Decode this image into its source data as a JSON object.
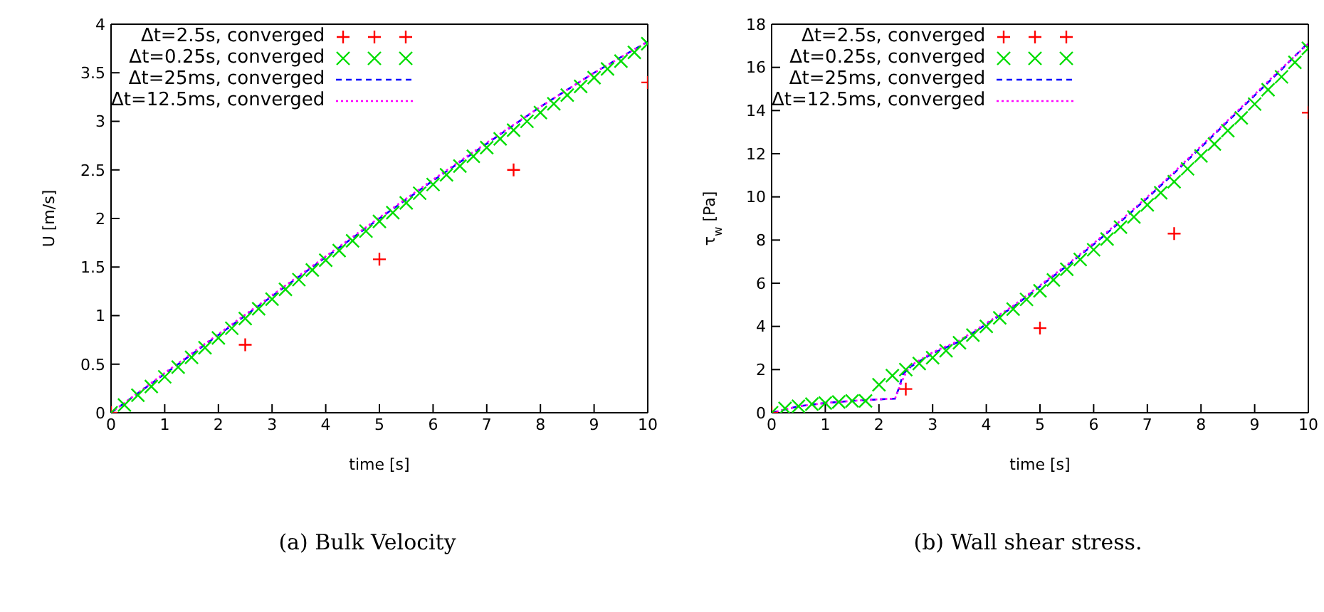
{
  "chart_data": [
    {
      "type": "line",
      "title": "(a) Bulk Velocity",
      "xlabel": "time [s]",
      "ylabel": "U [m/s]",
      "xlim": [
        0,
        10
      ],
      "xticks": [
        0,
        1,
        2,
        3,
        4,
        5,
        6,
        7,
        8,
        9,
        10
      ],
      "ylim": [
        0,
        4
      ],
      "yticks": [
        0,
        0.5,
        1,
        1.5,
        2,
        2.5,
        3,
        3.5,
        4
      ],
      "legend": "top left",
      "series": [
        {
          "name": "Δt=2.5s, converged",
          "type": "scatter",
          "marker": "plus",
          "color": "#ff0000",
          "x": [
            0,
            2.5,
            5,
            7.5,
            10
          ],
          "values": [
            0,
            0.7,
            1.58,
            2.5,
            3.4
          ]
        },
        {
          "name": "Δt=0.25s, converged",
          "type": "scatter",
          "marker": "cross",
          "color": "#00dd00",
          "x": [
            0,
            0.25,
            0.5,
            0.75,
            1,
            1.25,
            1.5,
            1.75,
            2,
            2.25,
            2.5,
            2.75,
            3,
            3.25,
            3.5,
            3.75,
            4,
            4.25,
            4.5,
            4.75,
            5,
            5.25,
            5.5,
            5.75,
            6,
            6.25,
            6.5,
            6.75,
            7,
            7.25,
            7.5,
            7.75,
            8,
            8.25,
            8.5,
            8.75,
            9,
            9.25,
            9.5,
            9.75,
            10
          ],
          "values": [
            0,
            0.08,
            0.18,
            0.27,
            0.37,
            0.47,
            0.57,
            0.67,
            0.77,
            0.87,
            0.97,
            1.07,
            1.17,
            1.27,
            1.37,
            1.47,
            1.57,
            1.67,
            1.77,
            1.87,
            1.97,
            2.06,
            2.16,
            2.26,
            2.35,
            2.45,
            2.54,
            2.64,
            2.73,
            2.82,
            2.91,
            3.0,
            3.09,
            3.18,
            3.27,
            3.36,
            3.45,
            3.54,
            3.62,
            3.71,
            3.8
          ]
        },
        {
          "name": "Δt=25ms, converged",
          "line_style": "dashed",
          "marker": "none",
          "color": "#0000ff",
          "x": [
            0,
            1,
            2,
            3,
            4,
            5,
            6,
            7,
            8,
            9,
            10
          ],
          "values": [
            0,
            0.4,
            0.8,
            1.2,
            1.6,
            2.0,
            2.39,
            2.77,
            3.15,
            3.5,
            3.82
          ]
        },
        {
          "name": "Δt=12.5ms, converged",
          "line_style": "dotted",
          "marker": "none",
          "color": "#ff00ff",
          "x": [
            0,
            1,
            2,
            3,
            4,
            5,
            6,
            7,
            8,
            9,
            10
          ],
          "values": [
            0,
            0.41,
            0.81,
            1.21,
            1.61,
            2.01,
            2.4,
            2.78,
            3.15,
            3.5,
            3.82
          ]
        }
      ]
    },
    {
      "type": "line",
      "title": "(b) Wall shear stress.",
      "xlabel": "time [s]",
      "ylabel": "τ$_{w}$ [Pa]",
      "xlim": [
        0,
        10
      ],
      "xticks": [
        0,
        1,
        2,
        3,
        4,
        5,
        6,
        7,
        8,
        9,
        10
      ],
      "ylim": [
        0,
        18
      ],
      "yticks": [
        0,
        2,
        4,
        6,
        8,
        10,
        12,
        14,
        16,
        18
      ],
      "legend": "top left",
      "series": [
        {
          "name": "Δt=2.5s, converged",
          "type": "scatter",
          "marker": "plus",
          "color": "#ff0000",
          "x": [
            0,
            2.5,
            5,
            7.5,
            10
          ],
          "values": [
            0,
            1.1,
            3.92,
            8.3,
            13.9
          ]
        },
        {
          "name": "Δt=0.25s, converged",
          "type": "scatter",
          "marker": "cross",
          "color": "#00dd00",
          "x": [
            0,
            0.25,
            0.5,
            0.75,
            1,
            1.25,
            1.5,
            1.75,
            2,
            2.25,
            2.5,
            2.75,
            3,
            3.25,
            3.5,
            3.75,
            4,
            4.25,
            4.5,
            4.75,
            5,
            5.25,
            5.5,
            5.75,
            6,
            6.25,
            6.5,
            6.75,
            7,
            7.25,
            7.5,
            7.75,
            8,
            8.25,
            8.5,
            8.75,
            9,
            9.25,
            9.5,
            9.75,
            10
          ],
          "values": [
            0,
            0.2,
            0.3,
            0.4,
            0.45,
            0.5,
            0.55,
            0.55,
            1.3,
            1.72,
            2.0,
            2.28,
            2.55,
            2.87,
            3.24,
            3.6,
            4.0,
            4.4,
            4.8,
            5.25,
            5.65,
            6.15,
            6.65,
            7.1,
            7.55,
            8.05,
            8.6,
            9.07,
            9.63,
            10.19,
            10.7,
            11.3,
            11.9,
            12.45,
            13.07,
            13.66,
            14.3,
            14.96,
            15.56,
            16.23,
            16.88
          ]
        },
        {
          "name": "Δt=25ms, converged",
          "line_style": "dashed",
          "marker": "none",
          "color": "#0000ff",
          "x": [
            0,
            0.5,
            1,
            1.5,
            2,
            2.3,
            2.38,
            2.45,
            2.6,
            3,
            3.5,
            4,
            4.5,
            5,
            5.5,
            6,
            6.5,
            7,
            7.5,
            8,
            8.5,
            9,
            9.5,
            10
          ],
          "values": [
            0,
            0.3,
            0.45,
            0.55,
            0.62,
            0.65,
            1.2,
            1.8,
            2.15,
            2.75,
            3.3,
            4.1,
            4.9,
            5.85,
            6.8,
            7.8,
            8.85,
            9.95,
            11.1,
            12.3,
            13.5,
            14.7,
            15.9,
            17.15
          ]
        },
        {
          "name": "Δt=12.5ms, converged",
          "line_style": "dotted",
          "marker": "none",
          "color": "#ff00ff",
          "x": [
            0,
            0.5,
            1,
            1.5,
            2,
            2.3,
            2.4,
            2.5,
            2.6,
            3,
            3.5,
            4,
            4.5,
            5,
            5.5,
            6,
            6.5,
            7,
            7.5,
            8,
            8.5,
            9,
            9.5,
            10
          ],
          "values": [
            0,
            0.3,
            0.45,
            0.55,
            0.62,
            0.66,
            1.3,
            1.85,
            2.2,
            2.8,
            3.35,
            4.15,
            4.95,
            5.9,
            6.85,
            7.85,
            8.9,
            10.0,
            11.15,
            12.35,
            13.55,
            14.75,
            15.95,
            17.1
          ]
        }
      ]
    }
  ]
}
